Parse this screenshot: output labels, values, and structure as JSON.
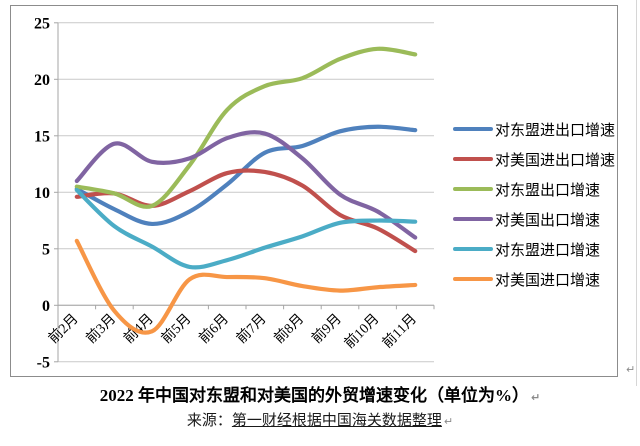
{
  "caption": {
    "title": "2022 年中国对东盟和对美国的外贸增速变化（单位为%）",
    "source_prefix": "来源：",
    "source_text": "第一财经根据中国海关数据整理",
    "return_mark": "↵"
  },
  "chart_data": {
    "type": "line",
    "smooth": true,
    "title": "",
    "xlabel": "",
    "ylabel": "",
    "ylim": [
      -5,
      25
    ],
    "ytick_step": 5,
    "yticks": [
      25,
      20,
      15,
      10,
      5,
      0,
      -5
    ],
    "grid": true,
    "legend_position": "right",
    "axis_color": "#a6a6a6",
    "grid_color": "#c9c9c9",
    "categories": [
      "前2月",
      "前3月",
      "前4月",
      "前5月",
      "前6月",
      "前7月",
      "前8月",
      "前9月",
      "前10月",
      "前11月"
    ],
    "series": [
      {
        "name": "对东盟进出口增速",
        "color": "#4F81BD",
        "values": [
          10.3,
          8.5,
          7.2,
          8.3,
          10.7,
          13.5,
          14.1,
          15.4,
          15.8,
          15.5
        ]
      },
      {
        "name": "对美国进出口增速",
        "color": "#C0504D",
        "values": [
          9.6,
          9.9,
          8.8,
          10.1,
          11.7,
          11.8,
          10.6,
          8.0,
          6.8,
          4.8
        ]
      },
      {
        "name": "对东盟出口增速",
        "color": "#9BBB59",
        "values": [
          10.5,
          9.9,
          8.8,
          12.4,
          17.3,
          19.4,
          20.1,
          21.8,
          22.7,
          22.2
        ]
      },
      {
        "name": "对美国出口增速",
        "color": "#8064A2",
        "values": [
          11.0,
          14.3,
          12.7,
          13.0,
          14.8,
          15.2,
          13.0,
          9.8,
          8.3,
          6.0
        ]
      },
      {
        "name": "对东盟进口增速",
        "color": "#4BACC6",
        "values": [
          10.2,
          7.0,
          5.2,
          3.4,
          4.0,
          5.1,
          6.1,
          7.3,
          7.5,
          7.4
        ]
      },
      {
        "name": "对美国进口增速",
        "color": "#F79646",
        "values": [
          5.7,
          -0.5,
          -2.3,
          2.3,
          2.5,
          2.4,
          1.7,
          1.3,
          1.6,
          1.8
        ]
      }
    ]
  }
}
